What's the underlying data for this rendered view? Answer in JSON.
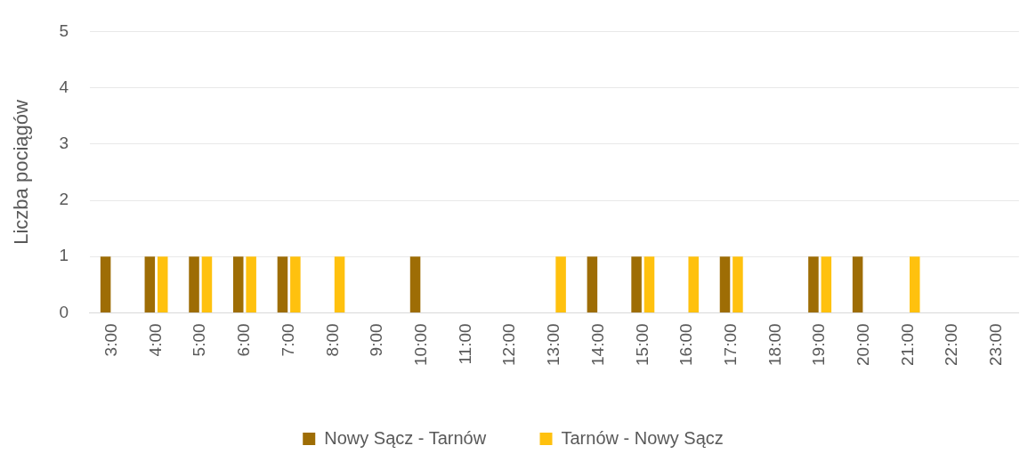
{
  "chart_data": {
    "type": "bar",
    "ylabel": "Liczba pociągów",
    "categories": [
      "3:00",
      "4:00",
      "5:00",
      "6:00",
      "7:00",
      "8:00",
      "9:00",
      "10:00",
      "11:00",
      "12:00",
      "13:00",
      "14:00",
      "15:00",
      "16:00",
      "17:00",
      "18:00",
      "19:00",
      "20:00",
      "21:00",
      "22:00",
      "23:00"
    ],
    "series": [
      {
        "name": "Nowy Sącz - Tarnów",
        "color": "#9e6d05",
        "values": [
          1,
          1,
          1,
          1,
          1,
          0,
          0,
          1,
          0,
          0,
          0,
          1,
          1,
          0,
          1,
          0,
          1,
          1,
          0,
          0,
          0
        ]
      },
      {
        "name": "Tarnów - Nowy Sącz",
        "color": "#ffc10e",
        "values": [
          0,
          1,
          1,
          1,
          1,
          1,
          0,
          0,
          0,
          0,
          1,
          0,
          1,
          1,
          1,
          0,
          1,
          0,
          1,
          0,
          0
        ]
      }
    ],
    "ylim": [
      0,
      5
    ],
    "yticks": [
      0,
      1,
      2,
      3,
      4,
      5
    ],
    "grid": "y",
    "legend": "bottom"
  }
}
